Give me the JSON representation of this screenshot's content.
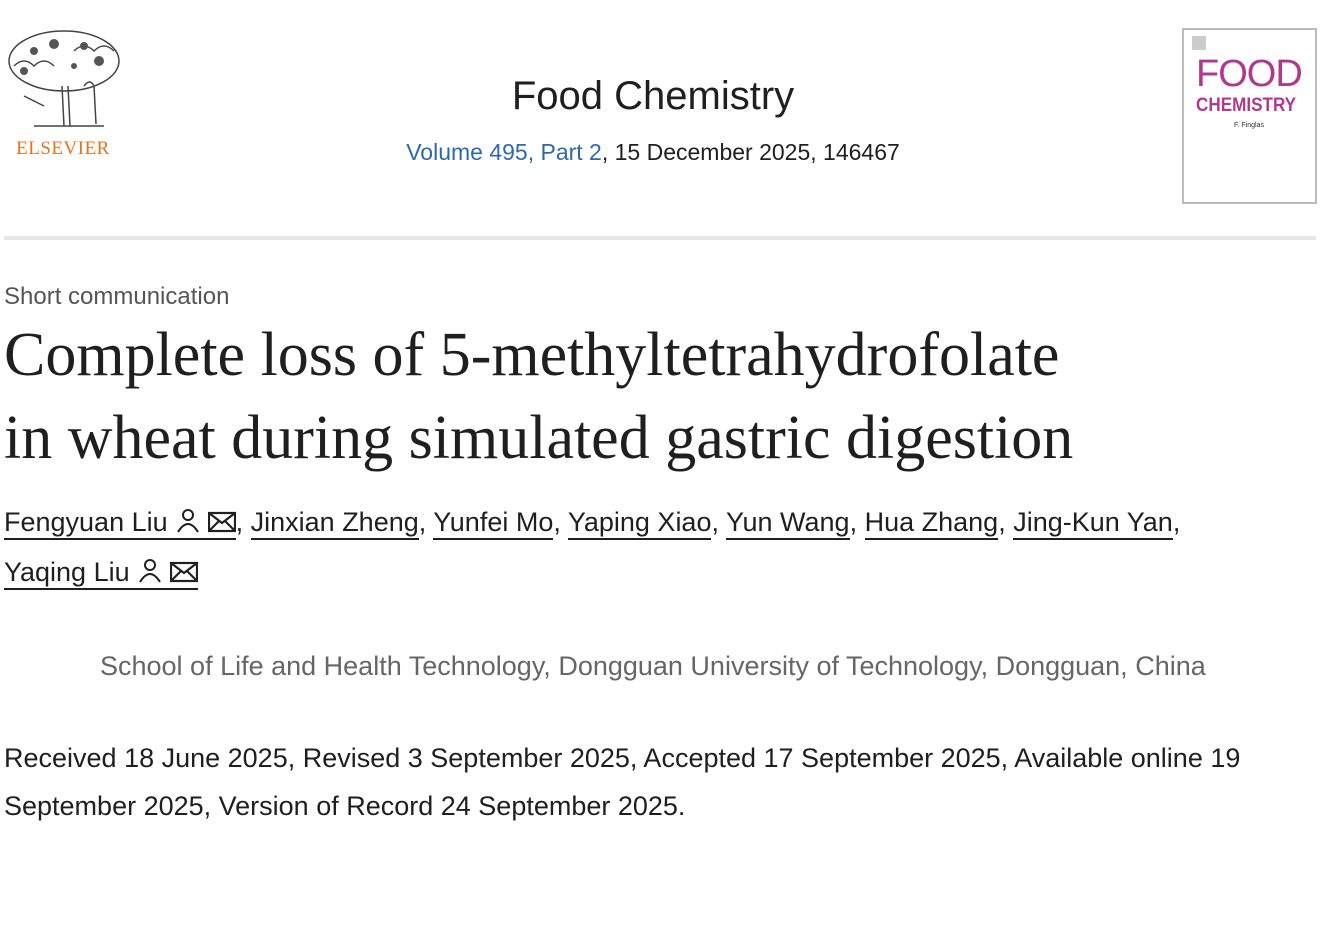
{
  "publisher": {
    "logo_text": "ELSEVIER"
  },
  "journal": {
    "name": "Food Chemistry",
    "volume_link": "Volume 495, Part 2",
    "issue_info": ", 15 December 2025, 146467",
    "cover": {
      "title_line1": "FOOD",
      "title_line2": "CHEMISTRY",
      "editor": "F. Finglas"
    }
  },
  "article": {
    "type": "Short communication",
    "title_line1": "Complete loss of 5-methyltetrahydrofolate",
    "title_line2": "in wheat during simulated gastric digestion",
    "authors": [
      {
        "name": "Fengyuan Liu",
        "icons": true
      },
      {
        "name": "Jinxian Zheng"
      },
      {
        "name": "Yunfei Mo"
      },
      {
        "name": "Yaping Xiao"
      },
      {
        "name": "Yun Wang"
      },
      {
        "name": "Hua Zhang"
      },
      {
        "name": "Jing-Kun Yan"
      },
      {
        "name": "Yaqing Liu",
        "icons": true
      }
    ],
    "separator": ", ",
    "affiliation": "School of Life and Health Technology, Dongguan University of Technology, Dongguan, China",
    "dates": "Received 18 June 2025, Revised 3 September 2025, Accepted 17 September 2025, Available online 19 September 2025, Version of Record 24 September 2025."
  },
  "colors": {
    "link": "#2e6aa6",
    "brand": "#e9711c",
    "cover_accent": "#b0398f"
  }
}
